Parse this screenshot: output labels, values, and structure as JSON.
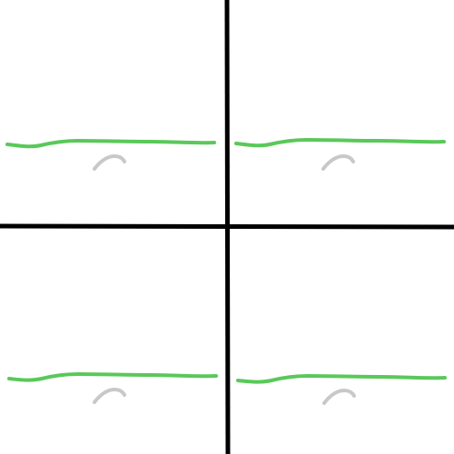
{
  "canvas": {
    "background": "#ffffff"
  },
  "colors": {
    "divider": "#000000",
    "horizon_line": "#5ac85a",
    "arc_mark": "#c8c8c8"
  },
  "grid": {
    "rows": 2,
    "columns": 2
  },
  "panels": [
    {
      "name": "panel-top-left",
      "elements": [
        "green-horizontal-line",
        "gray-arc-mark"
      ]
    },
    {
      "name": "panel-top-right",
      "elements": [
        "green-horizontal-line",
        "gray-arc-mark"
      ]
    },
    {
      "name": "panel-bottom-left",
      "elements": [
        "green-horizontal-line",
        "gray-arc-mark"
      ]
    },
    {
      "name": "panel-bottom-right",
      "elements": [
        "green-horizontal-line",
        "gray-arc-mark"
      ]
    }
  ]
}
